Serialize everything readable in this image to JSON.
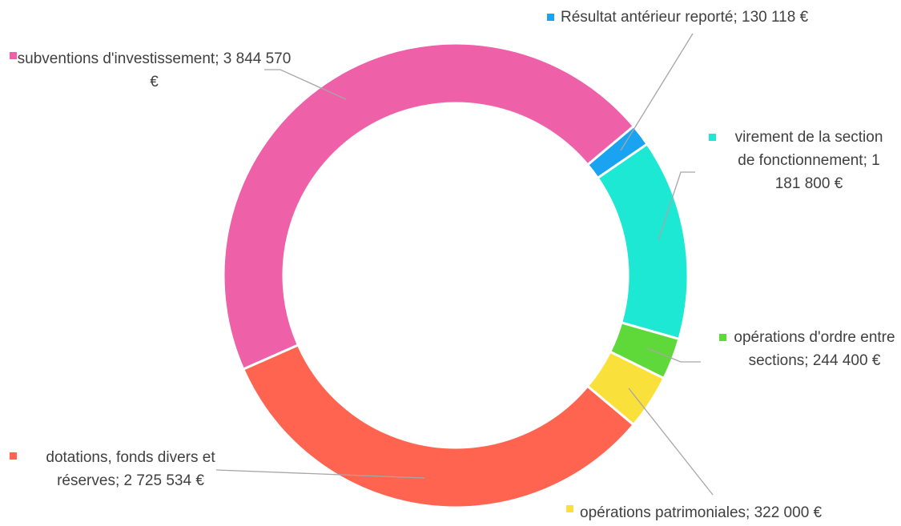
{
  "chart_data": {
    "type": "donut",
    "categories": [
      "Résultat antérieur reporté;",
      "virement de la section de fonctionnement;",
      "opérations d'ordre entre sections;",
      "opérations patrimoniales;",
      "dotations, fonds divers et réserves;",
      "subventions d'investissement;"
    ],
    "values": [
      130118,
      1181800,
      244400,
      322000,
      2725534,
      3844570
    ],
    "value_labels": [
      "130 118 €",
      "1 181 800 €",
      "244 400 €",
      "322 000 €",
      "2 725 534 €",
      "3 844 570 €"
    ],
    "colors": [
      "#1aa3f0",
      "#1de8d4",
      "#5fd93a",
      "#f9e03a",
      "#ff6450",
      "#ee60a8"
    ]
  }
}
